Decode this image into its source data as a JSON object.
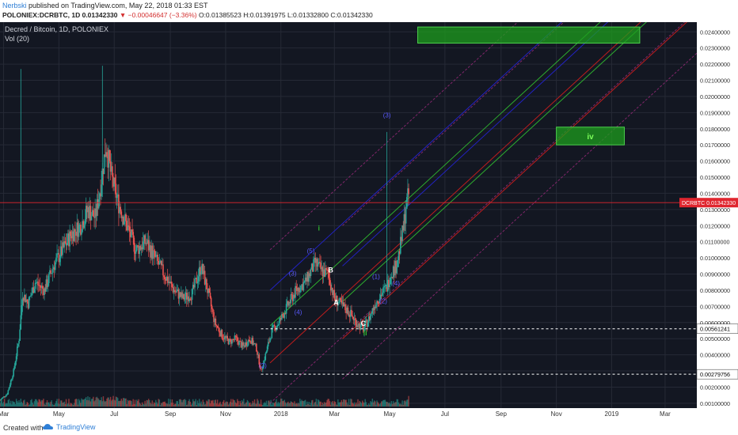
{
  "header": {
    "author": "Nerbski",
    "published": " published on TradingView.com, May 22, 2018 01:33 EST",
    "symbol_line": "POLONIEX:DCRBTC, 1D  0.01342330 ",
    "change": "▼ −0.00046647 (−3.36%)",
    "ohlc": " O:0.01385523  H:0.01391975  L:0.01332800  C:0.01342330"
  },
  "footer": {
    "created_with": "Created with",
    "brand": "TradingView"
  },
  "colors": {
    "background": "#131722",
    "grid": "#262a36",
    "up": "#26a69a",
    "down": "#ef5350",
    "green_line": "#2fb52f",
    "red_line": "#c81d1d",
    "blue_line": "#2323cc",
    "purple_line": "#9c2a7c",
    "box_fill": "#1e9e1e",
    "price_tag": "#e0262f"
  },
  "chart_data": {
    "type": "candlestick",
    "title": "Decred / Bitcoin, 1D, POLONIEX",
    "indicator": "Vol (20)",
    "x_tick_labels": [
      "Mar",
      "May",
      "Jul",
      "Sep",
      "Nov",
      "2018",
      "Mar",
      "May",
      "Jul",
      "Sep",
      "Nov",
      "2019",
      "Mar"
    ],
    "y_tick_labels": [
      "0.02400000",
      "0.02300000",
      "0.02200000",
      "0.02100000",
      "0.02000000",
      "0.01900000",
      "0.01800000",
      "0.01700000",
      "0.01600000",
      "0.01500000",
      "0.01400000",
      "0.01300000",
      "0.01200000",
      "0.01100000",
      "0.01000000",
      "0.00900000",
      "0.00800000",
      "0.00700000",
      "0.00600000",
      "0.00500000",
      "0.00400000",
      "0.00300000",
      "0.00200000",
      "0.00100000"
    ],
    "ylim": [
      0.0007,
      0.0246
    ],
    "current_price": {
      "label": "DCRBTC",
      "value": "0.01342330",
      "y": 0.0134233
    },
    "levels": [
      {
        "value": "0.00561241",
        "y": 0.00561241,
        "style": "dashed"
      },
      {
        "value": "0.00279756",
        "y": 0.00279756,
        "style": "dashed"
      }
    ],
    "target_boxes": [
      {
        "from": "2018-06-01",
        "to": "2019-02-01",
        "y_low": 0.0233,
        "y_high": 0.0243,
        "label": ""
      },
      {
        "from": "2018-11-01",
        "to": "2019-01-15",
        "y_low": 0.017,
        "y_high": 0.0181,
        "label": "iv"
      }
    ],
    "price_path": [
      [
        "2017-02-25",
        0.0012
      ],
      [
        "2017-03-05",
        0.0016
      ],
      [
        "2017-03-12",
        0.003
      ],
      [
        "2017-03-18",
        0.005
      ],
      [
        "2017-03-22",
        0.0078
      ],
      [
        "2017-03-28",
        0.0072
      ],
      [
        "2017-04-05",
        0.0085
      ],
      [
        "2017-04-15",
        0.008
      ],
      [
        "2017-04-25",
        0.0095
      ],
      [
        "2017-05-05",
        0.0105
      ],
      [
        "2017-05-15",
        0.0115
      ],
      [
        "2017-05-25",
        0.012
      ],
      [
        "2017-06-02",
        0.013
      ],
      [
        "2017-06-10",
        0.0125
      ],
      [
        "2017-06-16",
        0.0145
      ],
      [
        "2017-06-22",
        0.017
      ],
      [
        "2017-06-28",
        0.015
      ],
      [
        "2017-07-05",
        0.0135
      ],
      [
        "2017-07-15",
        0.012
      ],
      [
        "2017-07-25",
        0.0105
      ],
      [
        "2017-08-05",
        0.011
      ],
      [
        "2017-08-15",
        0.01
      ],
      [
        "2017-08-25",
        0.009
      ],
      [
        "2017-09-05",
        0.008
      ],
      [
        "2017-09-15",
        0.0075
      ],
      [
        "2017-09-25",
        0.0078
      ],
      [
        "2017-10-05",
        0.0095
      ],
      [
        "2017-10-12",
        0.008
      ],
      [
        "2017-10-20",
        0.006
      ],
      [
        "2017-10-28",
        0.0052
      ],
      [
        "2017-11-05",
        0.0048
      ],
      [
        "2017-11-12",
        0.005
      ],
      [
        "2017-11-20",
        0.0045
      ],
      [
        "2017-11-28",
        0.005
      ],
      [
        "2017-12-05",
        0.0044
      ],
      [
        "2017-12-10",
        0.003
      ],
      [
        "2017-12-15",
        0.004
      ],
      [
        "2017-12-22",
        0.0055
      ],
      [
        "2017-12-30",
        0.006
      ],
      [
        "2018-01-08",
        0.007
      ],
      [
        "2018-01-18",
        0.008
      ],
      [
        "2018-01-28",
        0.0085
      ],
      [
        "2018-02-08",
        0.0097
      ],
      [
        "2018-02-15",
        0.0092
      ],
      [
        "2018-02-22",
        0.009
      ],
      [
        "2018-03-01",
        0.0075
      ],
      [
        "2018-03-10",
        0.007
      ],
      [
        "2018-03-18",
        0.0066
      ],
      [
        "2018-03-25",
        0.006
      ],
      [
        "2018-04-02",
        0.0056
      ],
      [
        "2018-04-08",
        0.0062
      ],
      [
        "2018-04-15",
        0.0072
      ],
      [
        "2018-04-22",
        0.0078
      ],
      [
        "2018-04-28",
        0.0082
      ],
      [
        "2018-05-02",
        0.009
      ],
      [
        "2018-05-08",
        0.0095
      ],
      [
        "2018-05-12",
        0.0105
      ],
      [
        "2018-05-16",
        0.0118
      ],
      [
        "2018-05-19",
        0.0132
      ],
      [
        "2018-05-22",
        0.0139
      ]
    ],
    "spikes": [
      {
        "x": "2017-03-20",
        "hi": 0.0217
      },
      {
        "x": "2017-06-18",
        "hi": 0.0219
      },
      {
        "x": "2018-04-28",
        "hi": 0.0178
      }
    ],
    "annotations": [
      {
        "text": "(3)",
        "x": "2018-04-28",
        "y": 0.0187,
        "color": "#5a5aff"
      },
      {
        "text": "i",
        "x": "2018-02-12",
        "y": 0.0117,
        "color": "#2fb52f"
      },
      {
        "text": "(5)",
        "x": "2018-02-03",
        "y": 0.0103,
        "color": "#5a5aff"
      },
      {
        "text": "(3)",
        "x": "2018-01-14",
        "y": 0.0089,
        "color": "#5a5aff"
      },
      {
        "text": "(4)",
        "x": "2018-01-20",
        "y": 0.0065,
        "color": "#5a5aff"
      },
      {
        "text": "B",
        "x": "2018-02-25",
        "y": 0.0091,
        "color": "#ffffff"
      },
      {
        "text": "A",
        "x": "2018-03-03",
        "y": 0.0071,
        "color": "#ffffff"
      },
      {
        "text": "C",
        "x": "2018-04-02",
        "y": 0.0058,
        "color": "#ffffff"
      },
      {
        "text": "ii",
        "x": "2018-04-04",
        "y": 0.0052,
        "color": "#2fb52f"
      },
      {
        "text": "(1)",
        "x": "2018-04-16",
        "y": 0.0087,
        "color": "#5a5aff"
      },
      {
        "text": "(2)",
        "x": "2018-04-24",
        "y": 0.0072,
        "color": "#5a5aff"
      },
      {
        "text": "(4)",
        "x": "2018-05-08",
        "y": 0.0083,
        "color": "#5a5aff"
      },
      {
        "text": "(2)",
        "x": "2017-12-12",
        "y": 0.0032,
        "color": "#5a5aff"
      }
    ],
    "parallel_lines": {
      "slope_x0": "2017-12-20",
      "slope_x1": "2019-03-01",
      "rise": 0.0225,
      "offsets": [
        {
          "y0": 0.001,
          "color": "purple"
        },
        {
          "y0": 0.0035,
          "color": "red"
        },
        {
          "y0": 0.0058,
          "color": "green"
        },
        {
          "y0": 0.008,
          "color": "blue"
        },
        {
          "y0": 0.0105,
          "color": "purple"
        }
      ],
      "second_fan_shift_days": 80
    }
  }
}
